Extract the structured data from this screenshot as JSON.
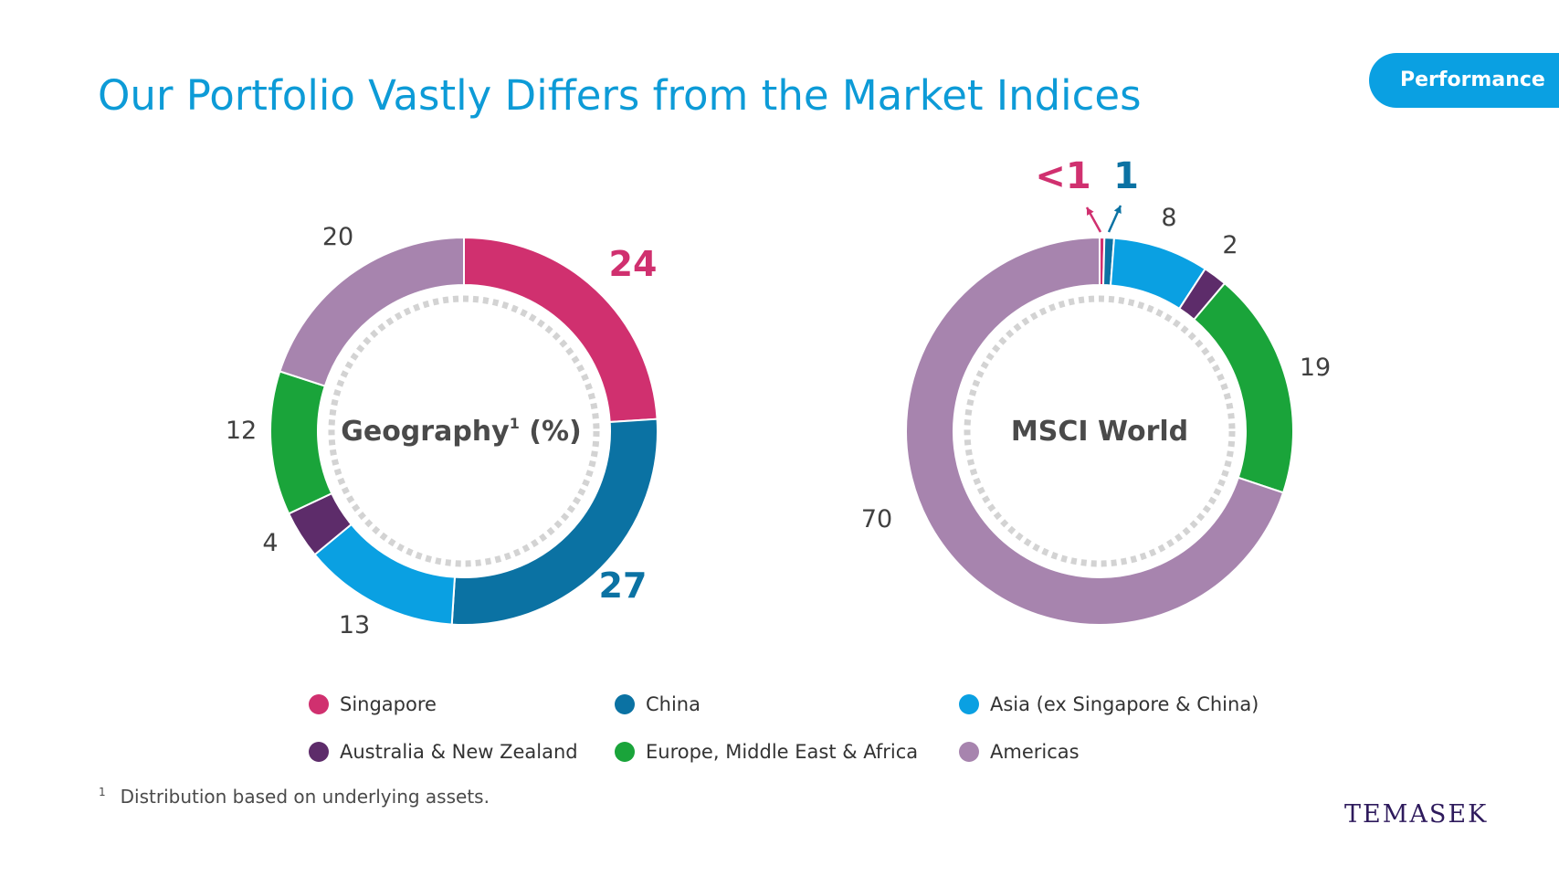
{
  "page": {
    "title": "Our Portfolio Vastly Differs from the Market Indices",
    "badge": "Performance",
    "footnote_marker": "1",
    "footnote": "Distribution based on underlying assets.",
    "logo": "TEMASEK"
  },
  "colors": {
    "Singapore": "#d0306f",
    "China": "#0b72a3",
    "Asia (ex Singapore & China)": "#0aa0e2",
    "Australia & New Zealand": "#5d2c6a",
    "Europe, Middle East & Africa": "#1aa43a",
    "Americas": "#a784ae"
  },
  "legend": [
    {
      "label": "Singapore"
    },
    {
      "label": "China"
    },
    {
      "label": "Asia (ex Singapore & China)"
    },
    {
      "label": "Australia & New Zealand"
    },
    {
      "label": "Europe, Middle East & Africa"
    },
    {
      "label": "Americas"
    }
  ],
  "chart_data": [
    {
      "type": "pie",
      "style": "donut",
      "title": "Geography",
      "title_superscript": "1",
      "title_suffix": " (%)",
      "categories": [
        "Singapore",
        "China",
        "Asia (ex Singapore & China)",
        "Australia & New Zealand",
        "Europe, Middle East & Africa",
        "Americas"
      ],
      "values": [
        24,
        27,
        13,
        4,
        12,
        20
      ],
      "value_labels": [
        "24",
        "27",
        "13",
        "4",
        "12",
        "20"
      ]
    },
    {
      "type": "pie",
      "style": "donut",
      "title": "MSCI World",
      "categories": [
        "Singapore",
        "China",
        "Asia (ex Singapore & China)",
        "Australia & New Zealand",
        "Europe, Middle East & Africa",
        "Americas"
      ],
      "values": [
        0.4,
        0.8,
        8,
        2,
        19,
        70
      ],
      "value_labels": [
        "<1",
        "1",
        "8",
        "2",
        "19",
        "70"
      ]
    }
  ]
}
